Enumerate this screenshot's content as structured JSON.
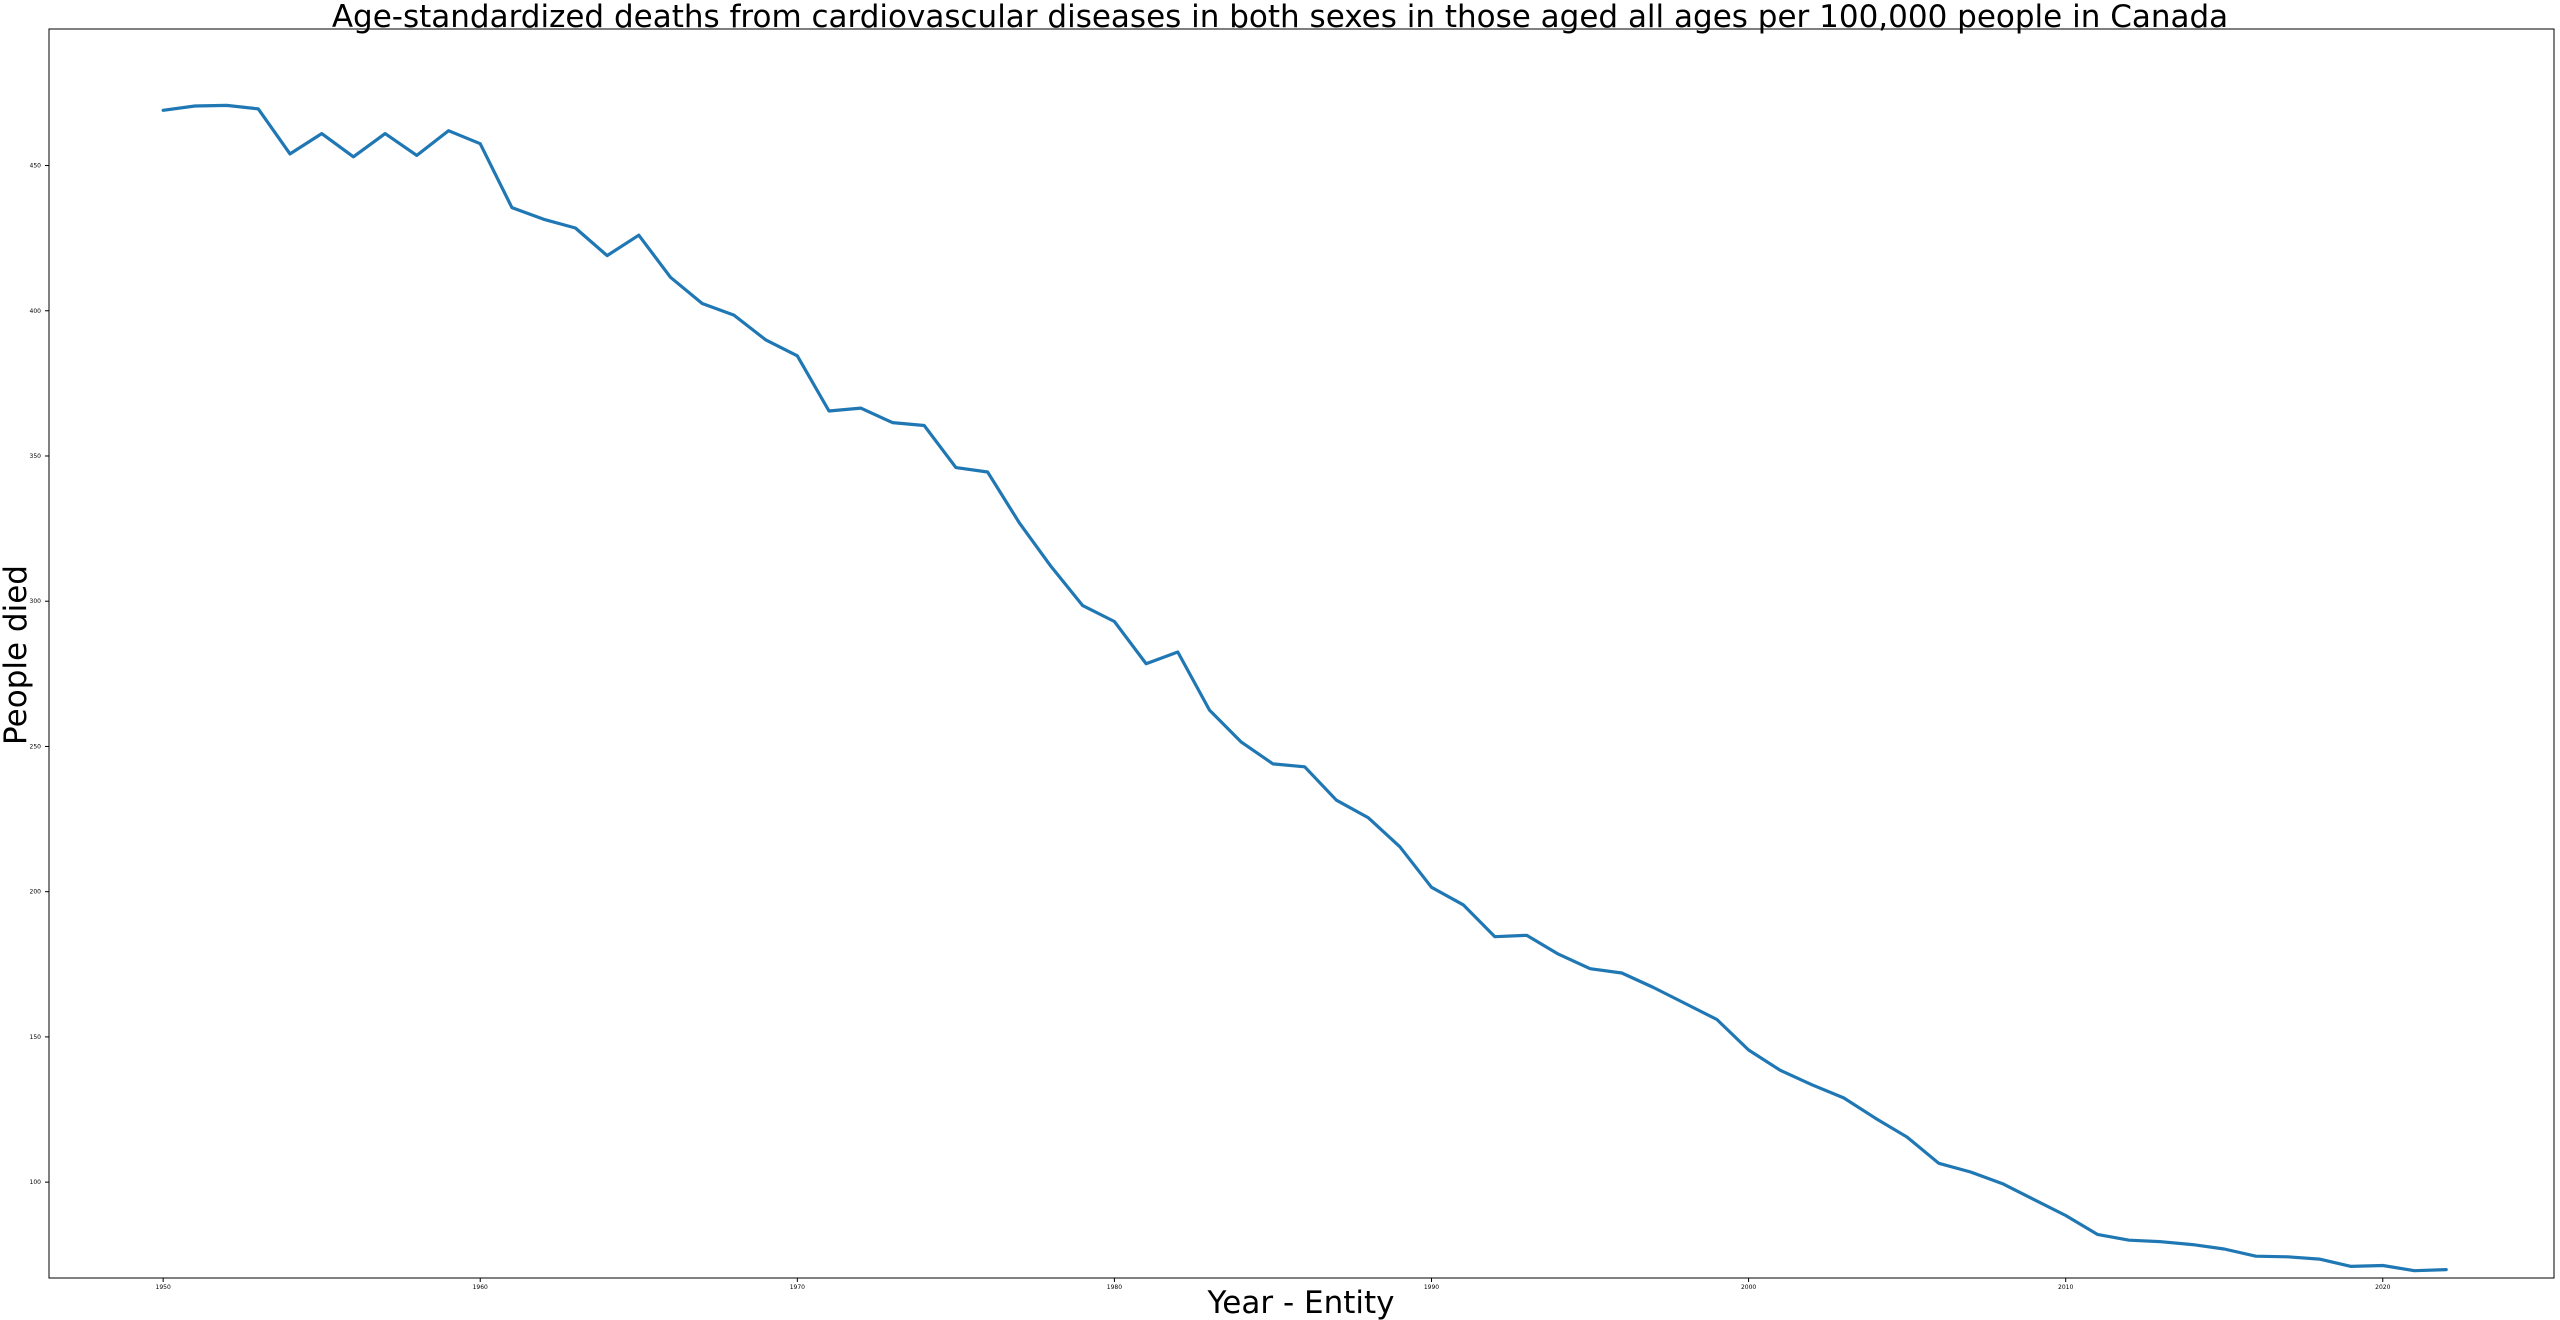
{
  "chart_data": {
    "type": "line",
    "title": "Age-standardized deaths from cardiovascular diseases in both sexes in those aged all ages per 100,000 people in Canada",
    "xlabel": "Year - Entity",
    "ylabel": "People died",
    "xlim": [
      1946.4,
      2025.4
    ],
    "ylim": [
      67,
      497
    ],
    "grid": false,
    "legend": "none",
    "line_color": "#1f77b4",
    "x_ticks": [
      1950,
      1960,
      1970,
      1980,
      1990,
      2000,
      2010,
      2020
    ],
    "x_tick_labels": [
      "1950",
      "1960",
      "1970",
      "1980",
      "1990",
      "2000",
      "2010",
      "2020"
    ],
    "y_ticks": [
      100,
      150,
      200,
      250,
      300,
      350,
      400,
      450
    ],
    "y_tick_labels": [
      "100",
      "150",
      "200",
      "250",
      "300",
      "350",
      "400",
      "450"
    ],
    "series": [
      {
        "x": [
          1950,
          1951,
          1952,
          1953,
          1954,
          1955,
          1956,
          1957,
          1958,
          1959,
          1960,
          1961,
          1962,
          1963,
          1964,
          1965,
          1966,
          1967,
          1968,
          1969,
          1970,
          1971,
          1972,
          1973,
          1974,
          1975,
          1976,
          1977,
          1978,
          1979,
          1980,
          1981,
          1982,
          1983,
          1984,
          1985,
          1986,
          1987,
          1988,
          1989,
          1990,
          1991,
          1992,
          1993,
          1994,
          1995,
          1996,
          1997,
          1998,
          1999,
          2000,
          2001,
          2002,
          2003,
          2004,
          2005,
          2006,
          2007,
          2008,
          2009,
          2010,
          2011,
          2012,
          2013,
          2014,
          2015,
          2016,
          2017,
          2018,
          2019,
          2020,
          2021,
          2022
        ],
        "values": [
          469,
          470.5,
          470.7,
          469.5,
          454,
          461,
          453,
          461,
          453.5,
          462,
          457.5,
          435.5,
          431.5,
          428.5,
          419,
          426,
          411.5,
          402.5,
          398.5,
          390,
          384.5,
          365.5,
          366.5,
          361.5,
          360.5,
          346,
          344.5,
          327,
          312,
          298.5,
          293,
          278.5,
          282.5,
          262.5,
          251.5,
          244,
          243,
          231.5,
          225.5,
          215.5,
          201.5,
          195.5,
          184.5,
          185,
          178.5,
          173.5,
          172,
          167,
          161.5,
          156,
          145.5,
          138.5,
          133.5,
          129,
          122,
          115.5,
          106.5,
          103.5,
          99.5,
          94,
          88.5,
          82,
          80,
          79.5,
          78.5,
          77,
          74.5,
          74.3,
          73.5,
          71,
          71.3,
          69.5,
          69.9
        ]
      }
    ]
  }
}
